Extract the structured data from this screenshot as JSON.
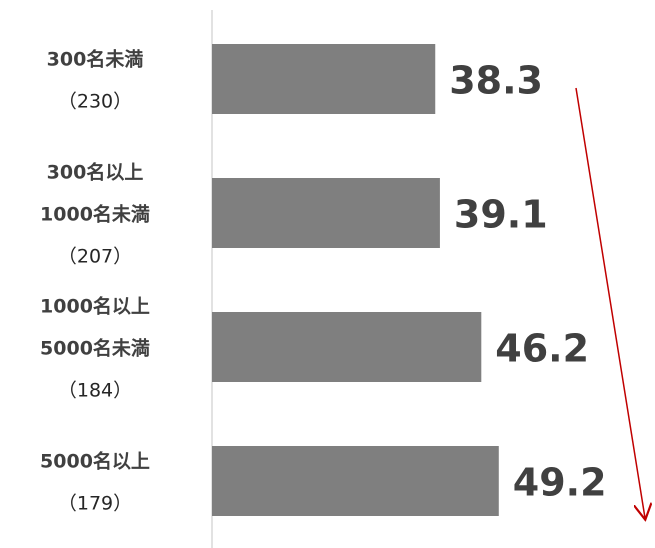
{
  "chart_data": {
    "type": "bar",
    "orientation": "horizontal",
    "categories": [
      [
        "300名未満",
        "（230）"
      ],
      [
        "300名以上",
        "1000名未満",
        "（207）"
      ],
      [
        "1000名以上",
        "5000名未満",
        "（184）"
      ],
      [
        "5000名以上",
        "（179）"
      ]
    ],
    "values": [
      38.3,
      39.1,
      46.2,
      49.2
    ],
    "color": "#7f7f7f",
    "xlim": [
      0,
      76
    ]
  }
}
